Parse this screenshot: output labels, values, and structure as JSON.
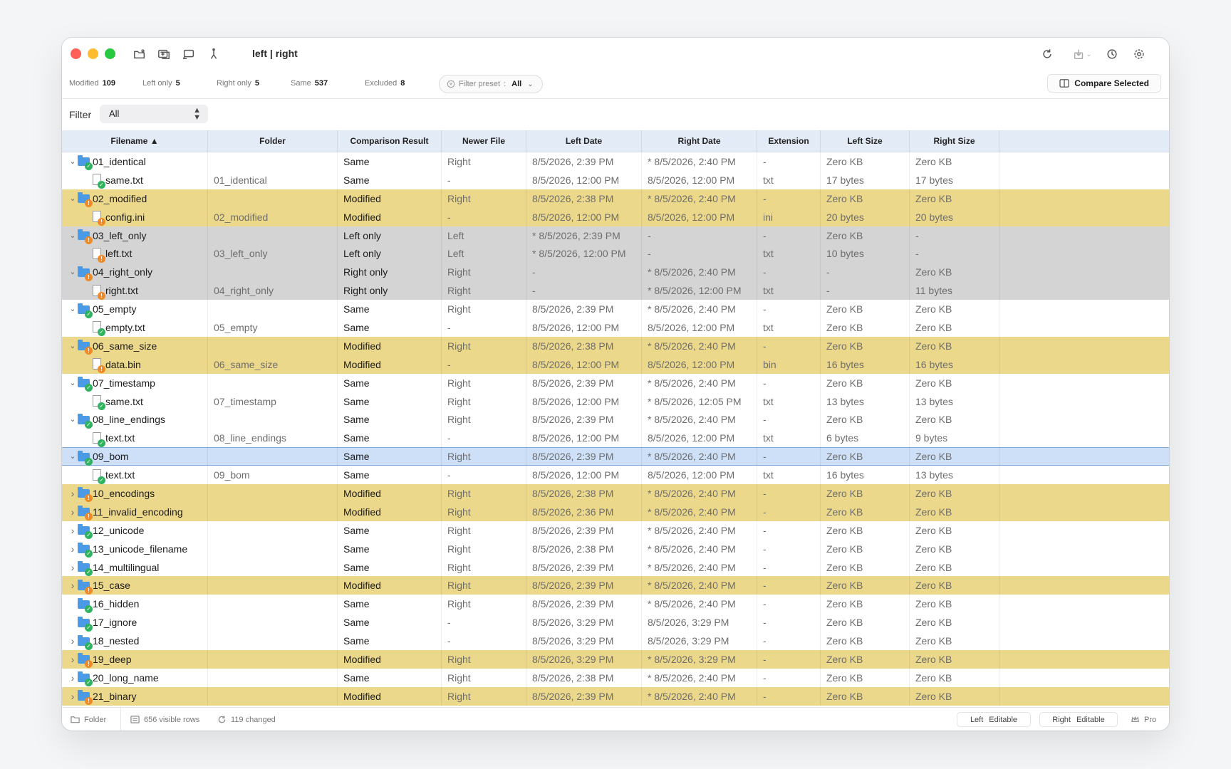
{
  "window": {
    "title": "left | right"
  },
  "toolbar": {
    "left_icons": [
      "open-folder-icon",
      "new-compare-icon",
      "swap-sides-icon",
      "merge-icon"
    ],
    "right_icons": [
      "refresh-icon",
      "export-icon",
      "history-icon",
      "settings-icon"
    ]
  },
  "stats": [
    {
      "label": "Modified",
      "value": "109"
    },
    {
      "label": "Left only",
      "value": "5"
    },
    {
      "label": "Right only",
      "value": "5"
    },
    {
      "label": "Same",
      "value": "537"
    },
    {
      "label": "Excluded",
      "value": "8"
    }
  ],
  "filter_preset": {
    "label": "Filter preset",
    "separator": ":",
    "value": "All"
  },
  "compare_selected": "Compare Selected",
  "filter": {
    "label": "Filter",
    "value": "All"
  },
  "columns": [
    "Filename ▲",
    "Folder",
    "Comparison Result",
    "Newer File",
    "Left Date",
    "Right Date",
    "Extension",
    "Left Size",
    "Right Size"
  ],
  "colors": {
    "same": "#ffffff",
    "modified": "#ecd88a",
    "only": "#d4d4d4",
    "selected": "#cde0f8",
    "header": "#e3ebf6"
  },
  "rows": [
    {
      "name": "01_identical",
      "type": "folder",
      "expand": "down",
      "badge": "ok",
      "status": "same",
      "folder": "",
      "result": "Same",
      "newer": "Right",
      "left_date": "8/5/2026, 2:39 PM",
      "right_date": "* 8/5/2026, 2:40 PM",
      "ext": "-",
      "left_size": "Zero KB",
      "right_size": "Zero KB"
    },
    {
      "name": "same.txt",
      "type": "file",
      "expand": "none",
      "badge": "ok",
      "status": "same",
      "folder": "01_identical",
      "result": "Same",
      "newer": "-",
      "left_date": "8/5/2026, 12:00 PM",
      "right_date": "8/5/2026, 12:00 PM",
      "ext": "txt",
      "left_size": "17 bytes",
      "right_size": "17 bytes"
    },
    {
      "name": "02_modified",
      "type": "folder",
      "expand": "down",
      "badge": "warn",
      "status": "modified",
      "folder": "",
      "result": "Modified",
      "newer": "Right",
      "left_date": "8/5/2026, 2:38 PM",
      "right_date": "* 8/5/2026, 2:40 PM",
      "ext": "-",
      "left_size": "Zero KB",
      "right_size": "Zero KB"
    },
    {
      "name": "config.ini",
      "type": "file",
      "expand": "none",
      "badge": "warn",
      "status": "modified",
      "folder": "02_modified",
      "result": "Modified",
      "newer": "-",
      "left_date": "8/5/2026, 12:00 PM",
      "right_date": "8/5/2026, 12:00 PM",
      "ext": "ini",
      "left_size": "20 bytes",
      "right_size": "20 bytes"
    },
    {
      "name": "03_left_only",
      "type": "folder",
      "expand": "down",
      "badge": "warn",
      "status": "left",
      "folder": "",
      "result": "Left only",
      "newer": "Left",
      "left_date": "* 8/5/2026, 2:39 PM",
      "right_date": "-",
      "ext": "-",
      "left_size": "Zero KB",
      "right_size": "-"
    },
    {
      "name": "left.txt",
      "type": "file",
      "expand": "none",
      "badge": "warn",
      "status": "left",
      "folder": "03_left_only",
      "result": "Left only",
      "newer": "Left",
      "left_date": "* 8/5/2026, 12:00 PM",
      "right_date": "-",
      "ext": "txt",
      "left_size": "10 bytes",
      "right_size": "-"
    },
    {
      "name": "04_right_only",
      "type": "folder",
      "expand": "down",
      "badge": "warn",
      "status": "right",
      "folder": "",
      "result": "Right only",
      "newer": "Right",
      "left_date": "-",
      "right_date": "* 8/5/2026, 2:40 PM",
      "ext": "-",
      "left_size": "-",
      "right_size": "Zero KB"
    },
    {
      "name": "right.txt",
      "type": "file",
      "expand": "none",
      "badge": "warn",
      "status": "right",
      "folder": "04_right_only",
      "result": "Right only",
      "newer": "Right",
      "left_date": "-",
      "right_date": "* 8/5/2026, 12:00 PM",
      "ext": "txt",
      "left_size": "-",
      "right_size": "11 bytes"
    },
    {
      "name": "05_empty",
      "type": "folder",
      "expand": "down",
      "badge": "ok",
      "status": "same",
      "folder": "",
      "result": "Same",
      "newer": "Right",
      "left_date": "8/5/2026, 2:39 PM",
      "right_date": "* 8/5/2026, 2:40 PM",
      "ext": "-",
      "left_size": "Zero KB",
      "right_size": "Zero KB"
    },
    {
      "name": "empty.txt",
      "type": "file",
      "expand": "none",
      "badge": "ok",
      "status": "same",
      "folder": "05_empty",
      "result": "Same",
      "newer": "-",
      "left_date": "8/5/2026, 12:00 PM",
      "right_date": "8/5/2026, 12:00 PM",
      "ext": "txt",
      "left_size": "Zero KB",
      "right_size": "Zero KB"
    },
    {
      "name": "06_same_size",
      "type": "folder",
      "expand": "down",
      "badge": "warn",
      "status": "modified",
      "folder": "",
      "result": "Modified",
      "newer": "Right",
      "left_date": "8/5/2026, 2:38 PM",
      "right_date": "* 8/5/2026, 2:40 PM",
      "ext": "-",
      "left_size": "Zero KB",
      "right_size": "Zero KB"
    },
    {
      "name": "data.bin",
      "type": "file",
      "expand": "none",
      "badge": "warn",
      "status": "modified",
      "folder": "06_same_size",
      "result": "Modified",
      "newer": "-",
      "left_date": "8/5/2026, 12:00 PM",
      "right_date": "8/5/2026, 12:00 PM",
      "ext": "bin",
      "left_size": "16 bytes",
      "right_size": "16 bytes"
    },
    {
      "name": "07_timestamp",
      "type": "folder",
      "expand": "down",
      "badge": "ok",
      "status": "same",
      "folder": "",
      "result": "Same",
      "newer": "Right",
      "left_date": "8/5/2026, 2:39 PM",
      "right_date": "* 8/5/2026, 2:40 PM",
      "ext": "-",
      "left_size": "Zero KB",
      "right_size": "Zero KB"
    },
    {
      "name": "same.txt",
      "type": "file",
      "expand": "none",
      "badge": "ok",
      "status": "same",
      "folder": "07_timestamp",
      "result": "Same",
      "newer": "Right",
      "left_date": "8/5/2026, 12:00 PM",
      "right_date": "* 8/5/2026, 12:05 PM",
      "ext": "txt",
      "left_size": "13 bytes",
      "right_size": "13 bytes"
    },
    {
      "name": "08_line_endings",
      "type": "folder",
      "expand": "down",
      "badge": "ok",
      "status": "same",
      "folder": "",
      "result": "Same",
      "newer": "Right",
      "left_date": "8/5/2026, 2:39 PM",
      "right_date": "* 8/5/2026, 2:40 PM",
      "ext": "-",
      "left_size": "Zero KB",
      "right_size": "Zero KB"
    },
    {
      "name": "text.txt",
      "type": "file",
      "expand": "none",
      "badge": "ok",
      "status": "same",
      "folder": "08_line_endings",
      "result": "Same",
      "newer": "-",
      "left_date": "8/5/2026, 12:00 PM",
      "right_date": "8/5/2026, 12:00 PM",
      "ext": "txt",
      "left_size": "6 bytes",
      "right_size": "9 bytes"
    },
    {
      "name": "09_bom",
      "type": "folder",
      "expand": "down",
      "badge": "ok",
      "status": "same",
      "selected": true,
      "folder": "",
      "result": "Same",
      "newer": "Right",
      "left_date": "8/5/2026, 2:39 PM",
      "right_date": "* 8/5/2026, 2:40 PM",
      "ext": "-",
      "left_size": "Zero KB",
      "right_size": "Zero KB"
    },
    {
      "name": "text.txt",
      "type": "file",
      "expand": "none",
      "badge": "ok",
      "status": "same",
      "folder": "09_bom",
      "result": "Same",
      "newer": "-",
      "left_date": "8/5/2026, 12:00 PM",
      "right_date": "8/5/2026, 12:00 PM",
      "ext": "txt",
      "left_size": "16 bytes",
      "right_size": "13 bytes"
    },
    {
      "name": "10_encodings",
      "type": "folder",
      "expand": "right",
      "badge": "warn",
      "status": "modified",
      "folder": "",
      "result": "Modified",
      "newer": "Right",
      "left_date": "8/5/2026, 2:38 PM",
      "right_date": "* 8/5/2026, 2:40 PM",
      "ext": "-",
      "left_size": "Zero KB",
      "right_size": "Zero KB"
    },
    {
      "name": "11_invalid_encoding",
      "type": "folder",
      "expand": "right",
      "badge": "warn",
      "status": "modified",
      "folder": "",
      "result": "Modified",
      "newer": "Right",
      "left_date": "8/5/2026, 2:36 PM",
      "right_date": "* 8/5/2026, 2:40 PM",
      "ext": "-",
      "left_size": "Zero KB",
      "right_size": "Zero KB"
    },
    {
      "name": "12_unicode",
      "type": "folder",
      "expand": "right",
      "badge": "ok",
      "status": "same",
      "folder": "",
      "result": "Same",
      "newer": "Right",
      "left_date": "8/5/2026, 2:39 PM",
      "right_date": "* 8/5/2026, 2:40 PM",
      "ext": "-",
      "left_size": "Zero KB",
      "right_size": "Zero KB"
    },
    {
      "name": "13_unicode_filename",
      "type": "folder",
      "expand": "right",
      "badge": "ok",
      "status": "same",
      "folder": "",
      "result": "Same",
      "newer": "Right",
      "left_date": "8/5/2026, 2:38 PM",
      "right_date": "* 8/5/2026, 2:40 PM",
      "ext": "-",
      "left_size": "Zero KB",
      "right_size": "Zero KB"
    },
    {
      "name": "14_multilingual",
      "type": "folder",
      "expand": "right",
      "badge": "ok",
      "status": "same",
      "folder": "",
      "result": "Same",
      "newer": "Right",
      "left_date": "8/5/2026, 2:39 PM",
      "right_date": "* 8/5/2026, 2:40 PM",
      "ext": "-",
      "left_size": "Zero KB",
      "right_size": "Zero KB"
    },
    {
      "name": "15_case",
      "type": "folder",
      "expand": "right",
      "badge": "warn",
      "status": "modified",
      "folder": "",
      "result": "Modified",
      "newer": "Right",
      "left_date": "8/5/2026, 2:39 PM",
      "right_date": "* 8/5/2026, 2:40 PM",
      "ext": "-",
      "left_size": "Zero KB",
      "right_size": "Zero KB"
    },
    {
      "name": "16_hidden",
      "type": "folder",
      "expand": "none",
      "badge": "ok",
      "status": "same",
      "folder": "",
      "result": "Same",
      "newer": "Right",
      "left_date": "8/5/2026, 2:39 PM",
      "right_date": "* 8/5/2026, 2:40 PM",
      "ext": "-",
      "left_size": "Zero KB",
      "right_size": "Zero KB"
    },
    {
      "name": "17_ignore",
      "type": "folder",
      "expand": "none",
      "badge": "ok",
      "status": "same",
      "folder": "",
      "result": "Same",
      "newer": "-",
      "left_date": "8/5/2026, 3:29 PM",
      "right_date": "8/5/2026, 3:29 PM",
      "ext": "-",
      "left_size": "Zero KB",
      "right_size": "Zero KB"
    },
    {
      "name": "18_nested",
      "type": "folder",
      "expand": "right",
      "badge": "ok",
      "status": "same",
      "folder": "",
      "result": "Same",
      "newer": "-",
      "left_date": "8/5/2026, 3:29 PM",
      "right_date": "8/5/2026, 3:29 PM",
      "ext": "-",
      "left_size": "Zero KB",
      "right_size": "Zero KB"
    },
    {
      "name": "19_deep",
      "type": "folder",
      "expand": "right",
      "badge": "warn",
      "status": "modified",
      "folder": "",
      "result": "Modified",
      "newer": "Right",
      "left_date": "8/5/2026, 3:29 PM",
      "right_date": "* 8/5/2026, 3:29 PM",
      "ext": "-",
      "left_size": "Zero KB",
      "right_size": "Zero KB"
    },
    {
      "name": "20_long_name",
      "type": "folder",
      "expand": "right",
      "badge": "ok",
      "status": "same",
      "folder": "",
      "result": "Same",
      "newer": "Right",
      "left_date": "8/5/2026, 2:38 PM",
      "right_date": "* 8/5/2026, 2:40 PM",
      "ext": "-",
      "left_size": "Zero KB",
      "right_size": "Zero KB"
    },
    {
      "name": "21_binary",
      "type": "folder",
      "expand": "right",
      "badge": "warn",
      "status": "modified",
      "folder": "",
      "result": "Modified",
      "newer": "Right",
      "left_date": "8/5/2026, 2:39 PM",
      "right_date": "* 8/5/2026, 2:40 PM",
      "ext": "-",
      "left_size": "Zero KB",
      "right_size": "Zero KB"
    }
  ],
  "statusbar": {
    "folder_label": "Folder",
    "visible_rows": "656 visible rows",
    "changed": "119 changed",
    "left_btn": {
      "label": "Left",
      "state": "Editable"
    },
    "right_btn": {
      "label": "Right",
      "state": "Editable"
    },
    "pro_label": "Pro"
  }
}
